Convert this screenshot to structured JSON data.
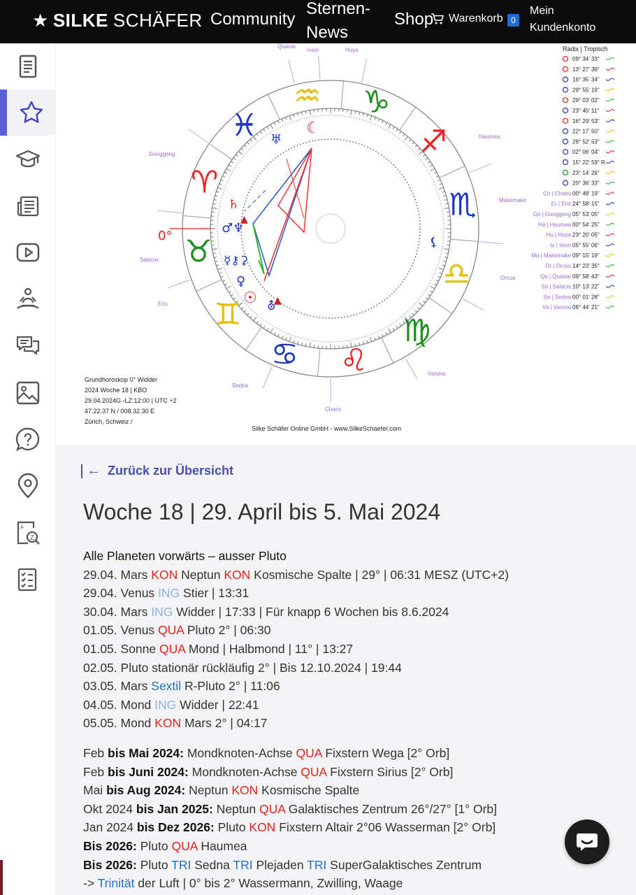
{
  "header": {
    "brand_bold": "SILKE",
    "brand_rest": "SCHÄFER",
    "nav_community": "Community",
    "nav_sterne_line1": "Sternen-",
    "nav_sterne_line2": "News",
    "nav_shop": "Shop",
    "cart_label": "Warenkorb",
    "cart_count": "0",
    "account_line1": "Mein",
    "account_line2": "Kundenkonto"
  },
  "sidebar": {
    "items": [
      {
        "icon": "document-icon",
        "active": false
      },
      {
        "icon": "star-icon",
        "active": true
      },
      {
        "icon": "graduation-cap-icon",
        "active": false
      },
      {
        "icon": "newspaper-icon",
        "active": false
      },
      {
        "icon": "video-play-icon",
        "active": false
      },
      {
        "icon": "meditation-icon",
        "active": false
      },
      {
        "icon": "chat-bubbles-icon",
        "active": false
      },
      {
        "icon": "image-icon",
        "active": false
      },
      {
        "icon": "help-bubble-icon",
        "active": false
      },
      {
        "icon": "location-pin-icon",
        "active": false
      },
      {
        "icon": "dictionary-icon",
        "active": false
      },
      {
        "icon": "checklist-icon",
        "active": false
      }
    ]
  },
  "horoscope": {
    "zero_label": "0°",
    "outer_labels": {
      "quaoar": "Quaoar",
      "ixion": "Ixion",
      "huya": "Huya",
      "haumea": "Haumea",
      "makemake": "Makemake",
      "gonggong": "Gonggong",
      "salacia": "Salacia",
      "eris": "Eris",
      "orcus": "Orcus",
      "sedna": "Sedna",
      "varuna": "Varuna",
      "chaos": "Chaos"
    },
    "legend_title": "Radix | Tropisch",
    "positions": [
      {
        "name": "",
        "value": "09° 34' 33\""
      },
      {
        "name": "",
        "value": "13° 27' 36\""
      },
      {
        "name": "",
        "value": "16° 35' 34\""
      },
      {
        "name": "",
        "value": "29° 55' 19\""
      },
      {
        "name": "",
        "value": "29° 03' 02\""
      },
      {
        "name": "",
        "value": "23° 45' 11\""
      },
      {
        "name": "",
        "value": "16° 29' 53\""
      },
      {
        "name": "",
        "value": "22° 17' 50\""
      },
      {
        "name": "",
        "value": "28° 52' 53\""
      },
      {
        "name": "",
        "value": "02° 06' 04\""
      },
      {
        "name": "",
        "value": "15° 22' 59\" R"
      },
      {
        "name": "",
        "value": "23° 14' 26\""
      },
      {
        "name": "",
        "value": "20° 36' 33\""
      },
      {
        "name": "Ch | Chaos",
        "value": "00° 48' 19\""
      },
      {
        "name": "Er | Eris",
        "value": "24° 58' 15\""
      },
      {
        "name": "Go | Gonggong",
        "value": "05° 53' 05\""
      },
      {
        "name": "Ha | Haumea",
        "value": "00° 54' 25\""
      },
      {
        "name": "Hu | Huya",
        "value": "23° 20' 05\""
      },
      {
        "name": "Ix | Ixion",
        "value": "05° 55' 06\""
      },
      {
        "name": "Ma | Makemake",
        "value": "09° 15' 19\""
      },
      {
        "name": "Or | Orcus",
        "value": "14° 23' 35\""
      },
      {
        "name": "Qu | Quaoar",
        "value": "09° 58' 43\""
      },
      {
        "name": "Sa | Salacia",
        "value": "10° 13' 22\""
      },
      {
        "name": "Se | Sedna",
        "value": "00° 01' 28\""
      },
      {
        "name": "Va | Varuna",
        "value": "06° 44' 21\""
      }
    ],
    "info_lines": [
      "Grundhoroskop 0° Widder",
      "2024 Woche 18 | KBO",
      "29.04.2024G -LZ:12:00 | UTC +2",
      "47.22.37 N / 008.32.30 E",
      "Zürich, Schweiz /"
    ],
    "footer": "Silke Schäfer Online GmbH - www.SilkeSchaefer.com"
  },
  "content": {
    "back_label": "Zurück zur Übersicht",
    "title": "Woche 18 | 29. April bis 5. Mai 2024",
    "headline": "Alle Planeten vorwärts – ausser Pluto",
    "events": [
      [
        {
          "t": "29.04. Mars ",
          "c": ""
        },
        {
          "t": "KON",
          "c": "red"
        },
        {
          "t": " Neptun ",
          "c": ""
        },
        {
          "t": "KON",
          "c": "red"
        },
        {
          "t": " Kosmische Spalte | 29° | 06:31 MESZ (UTC+2)",
          "c": ""
        }
      ],
      [
        {
          "t": "29.04. Venus ",
          "c": ""
        },
        {
          "t": "ING",
          "c": "lblue"
        },
        {
          "t": " Stier | 13:31",
          "c": ""
        }
      ],
      [
        {
          "t": "30.04. Mars ",
          "c": ""
        },
        {
          "t": "ING",
          "c": "lblue"
        },
        {
          "t": " Widder | 17:33 | Für knapp 6 Wochen bis 8.6.2024",
          "c": ""
        }
      ],
      [
        {
          "t": "01.05. Venus ",
          "c": ""
        },
        {
          "t": "QUA",
          "c": "red"
        },
        {
          "t": " Pluto 2° | 06:30",
          "c": ""
        }
      ],
      [
        {
          "t": "01.05. Sonne ",
          "c": ""
        },
        {
          "t": "QUA",
          "c": "red"
        },
        {
          "t": " Mond | Halbmond | 11° | 13:27",
          "c": ""
        }
      ],
      [
        {
          "t": "02.05. Pluto stationär rückläufig 2° | Bis 12.10.2024 | 19:44",
          "c": ""
        }
      ],
      [
        {
          "t": "03.05. Mars ",
          "c": ""
        },
        {
          "t": "Sextil",
          "c": "blue"
        },
        {
          "t": " R-Pluto 2° | 11:06",
          "c": ""
        }
      ],
      [
        {
          "t": "04.05. Mond ",
          "c": ""
        },
        {
          "t": "ING",
          "c": "lblue"
        },
        {
          "t": " Widder | 22:41",
          "c": ""
        }
      ],
      [
        {
          "t": "05.05. Mond ",
          "c": ""
        },
        {
          "t": "KON",
          "c": "red"
        },
        {
          "t": " Mars 2° | 04:17",
          "c": ""
        }
      ]
    ],
    "longterm": [
      [
        {
          "t": "Feb ",
          "c": ""
        },
        {
          "t": "bis Mai 2024:",
          "c": "bold"
        },
        {
          "t": " Mondknoten-Achse ",
          "c": ""
        },
        {
          "t": "QUA",
          "c": "red"
        },
        {
          "t": " Fixstern Wega [2° Orb]",
          "c": ""
        }
      ],
      [
        {
          "t": "Feb ",
          "c": ""
        },
        {
          "t": "bis Juni 2024:",
          "c": "bold"
        },
        {
          "t": " Mondknoten-Achse ",
          "c": ""
        },
        {
          "t": "QUA",
          "c": "red"
        },
        {
          "t": " Fixstern Sirius [2° Orb]",
          "c": ""
        }
      ],
      [
        {
          "t": "Mai ",
          "c": ""
        },
        {
          "t": "bis Aug 2024:",
          "c": "bold"
        },
        {
          "t": " Neptun ",
          "c": ""
        },
        {
          "t": "KON",
          "c": "red"
        },
        {
          "t": " Kosmische Spalte",
          "c": ""
        }
      ],
      [
        {
          "t": "Okt 2024 ",
          "c": ""
        },
        {
          "t": "bis Jan 2025:",
          "c": "bold"
        },
        {
          "t": " Neptun ",
          "c": ""
        },
        {
          "t": "QUA",
          "c": "red"
        },
        {
          "t": " Galaktisches Zentrum 26°/27° [1° Orb]",
          "c": ""
        }
      ],
      [
        {
          "t": "Jan 2024 ",
          "c": ""
        },
        {
          "t": "bis Dez 2026:",
          "c": "bold"
        },
        {
          "t": " Pluto ",
          "c": ""
        },
        {
          "t": "KON",
          "c": "red"
        },
        {
          "t": " Fixstern Altair 2°06 Wasserman [2° Orb]",
          "c": ""
        }
      ],
      [
        {
          "t": "Bis 2026:",
          "c": "bold"
        },
        {
          "t": " Pluto ",
          "c": ""
        },
        {
          "t": "QUA",
          "c": "red"
        },
        {
          "t": " Haumea",
          "c": ""
        }
      ],
      [
        {
          "t": "Bis 2026:",
          "c": "bold"
        },
        {
          "t": " Pluto ",
          "c": ""
        },
        {
          "t": "TRI",
          "c": "blue"
        },
        {
          "t": " Sedna ",
          "c": ""
        },
        {
          "t": "TRI",
          "c": "blue"
        },
        {
          "t": " Plejaden ",
          "c": ""
        },
        {
          "t": "TRI",
          "c": "blue"
        },
        {
          "t": " SuperGalaktisches Zentrum",
          "c": ""
        }
      ],
      [
        {
          "t": "-> ",
          "c": ""
        },
        {
          "t": "Trinität",
          "c": "blue"
        },
        {
          "t": " der Luft | 0° bis 2° Wassermann, Zwilling, Waage",
          "c": ""
        }
      ]
    ]
  },
  "colors": {
    "topbar": "#0b0b0b",
    "accent": "#5c5fd6",
    "link": "#4a4fb0",
    "red": "#e2231a",
    "light_blue": "#8fb3de",
    "blue": "#1f6fc5",
    "content_bg": "#f4f4f6"
  }
}
